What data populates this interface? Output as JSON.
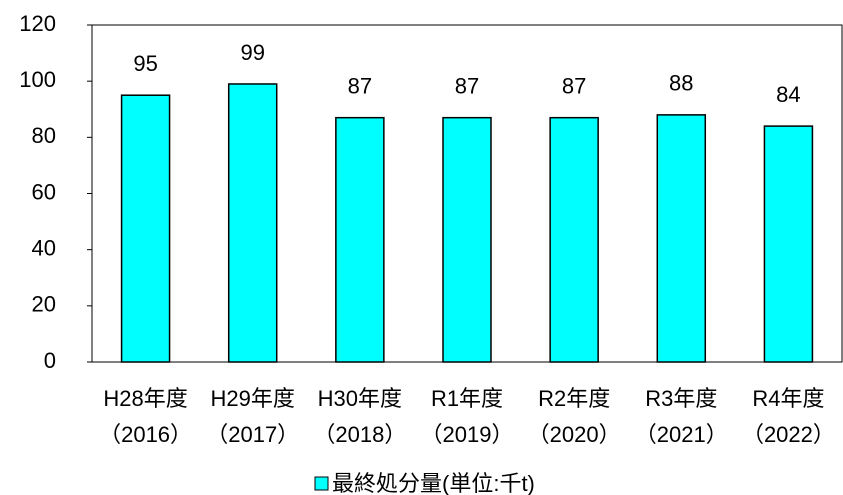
{
  "chart_data": {
    "type": "bar",
    "categories": [
      "H28年度\n（2016）",
      "H29年度\n（2017）",
      "H30年度\n（2018）",
      "R1年度\n（2019）",
      "R2年度\n（2020）",
      "R3年度\n（2021）",
      "R4年度\n（2022）"
    ],
    "series": [
      {
        "name": "最終処分量(単位:千t)",
        "color": "#00ffff",
        "values": [
          95,
          99,
          87,
          87,
          87,
          88,
          84
        ]
      }
    ],
    "ylim": [
      0,
      120
    ],
    "yticks": [
      0,
      20,
      40,
      60,
      80,
      100,
      120
    ],
    "legend": "bottom"
  }
}
